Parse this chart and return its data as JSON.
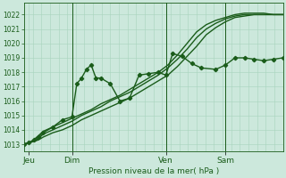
{
  "background_color": "#cce8dc",
  "grid_color": "#a8d4bc",
  "line_color": "#1a5c1a",
  "marker_color": "#1a5c1a",
  "xlabel": "Pression niveau de la mer( hPa )",
  "ylim": [
    1012.5,
    1022.8
  ],
  "yticks": [
    1013,
    1014,
    1015,
    1016,
    1017,
    1018,
    1019,
    1020,
    1021,
    1022
  ],
  "day_labels": [
    "Jeu",
    "Dim",
    "Ven",
    "Sam"
  ],
  "day_positions": [
    5,
    50,
    148,
    210
  ],
  "total_points": 270,
  "lines": [
    {
      "x": [
        0,
        5,
        10,
        15,
        20,
        30,
        40,
        50,
        60,
        70,
        80,
        90,
        100,
        110,
        120,
        130,
        140,
        150,
        160,
        170,
        180,
        190,
        200,
        210,
        220,
        230,
        240,
        250,
        260,
        270
      ],
      "y": [
        1013.0,
        1013.1,
        1013.3,
        1013.6,
        1013.9,
        1014.2,
        1014.5,
        1014.8,
        1015.1,
        1015.4,
        1015.8,
        1016.1,
        1016.4,
        1016.8,
        1017.2,
        1017.6,
        1018.0,
        1018.5,
        1019.2,
        1020.0,
        1020.8,
        1021.3,
        1021.6,
        1021.8,
        1022.0,
        1022.1,
        1022.1,
        1022.1,
        1022.0,
        1022.0
      ],
      "marker": false,
      "lw": 1.0
    },
    {
      "x": [
        0,
        5,
        10,
        15,
        20,
        30,
        40,
        50,
        60,
        70,
        80,
        90,
        100,
        110,
        120,
        130,
        140,
        150,
        160,
        170,
        180,
        190,
        200,
        210,
        220,
        230,
        240,
        250,
        260,
        270
      ],
      "y": [
        1013.0,
        1013.1,
        1013.2,
        1013.4,
        1013.7,
        1014.0,
        1014.3,
        1014.6,
        1015.0,
        1015.3,
        1015.6,
        1016.0,
        1016.3,
        1016.6,
        1017.0,
        1017.4,
        1017.8,
        1018.3,
        1018.9,
        1019.6,
        1020.4,
        1021.0,
        1021.4,
        1021.7,
        1021.9,
        1022.0,
        1022.0,
        1022.0,
        1022.0,
        1022.0
      ],
      "marker": false,
      "lw": 1.0
    },
    {
      "x": [
        0,
        5,
        10,
        15,
        20,
        30,
        40,
        50,
        60,
        70,
        80,
        90,
        100,
        110,
        120,
        130,
        140,
        150,
        160,
        170,
        180,
        190,
        200,
        210,
        220,
        230,
        240,
        250,
        260,
        270
      ],
      "y": [
        1013.0,
        1013.1,
        1013.2,
        1013.3,
        1013.5,
        1013.8,
        1014.0,
        1014.3,
        1014.7,
        1015.0,
        1015.3,
        1015.6,
        1015.9,
        1016.2,
        1016.6,
        1017.0,
        1017.4,
        1017.8,
        1018.4,
        1019.1,
        1019.8,
        1020.6,
        1021.1,
        1021.5,
        1021.8,
        1021.9,
        1022.0,
        1022.0,
        1022.0,
        1022.0
      ],
      "marker": false,
      "lw": 1.0
    },
    {
      "x": [
        0,
        5,
        10,
        15,
        20,
        30,
        40,
        50,
        55,
        60,
        65,
        70,
        75,
        80,
        90,
        100,
        110,
        120,
        130,
        140,
        148,
        155,
        165,
        175,
        185,
        200,
        210,
        220,
        230,
        240,
        250,
        260,
        270
      ],
      "y": [
        1013.0,
        1013.1,
        1013.3,
        1013.5,
        1013.8,
        1014.2,
        1014.7,
        1014.9,
        1017.2,
        1017.6,
        1018.2,
        1018.5,
        1017.6,
        1017.6,
        1017.2,
        1016.0,
        1016.2,
        1017.8,
        1017.9,
        1018.0,
        1017.8,
        1019.3,
        1019.1,
        1018.6,
        1018.3,
        1018.2,
        1018.5,
        1019.0,
        1019.0,
        1018.9,
        1018.8,
        1018.9,
        1019.0
      ],
      "marker": true,
      "lw": 1.0
    }
  ],
  "vlines_x": [
    50,
    148,
    210
  ]
}
